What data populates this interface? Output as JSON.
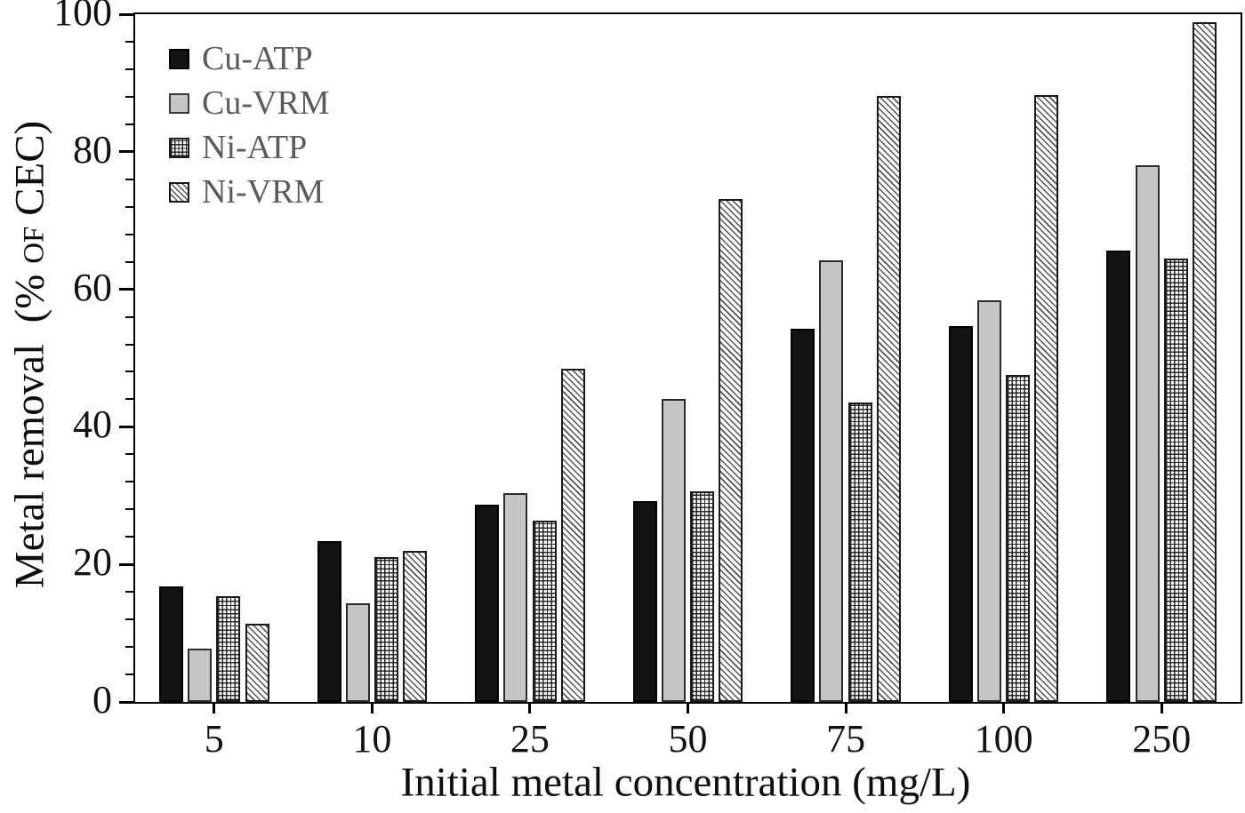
{
  "chart_data": {
    "type": "bar",
    "title": "",
    "xlabel": "Initial metal concentration (mg/L)",
    "ylabel": "Metal removal (% OF CEC)",
    "ylabel_parts": {
      "prefix": "Metal removal  (% ",
      "smallcaps": "OF",
      "suffix": " CEC)"
    },
    "categories": [
      "5",
      "10",
      "25",
      "50",
      "75",
      "100",
      "250"
    ],
    "series": [
      {
        "name": "Cu-ATP",
        "pattern": "solid-black",
        "color": "#141414",
        "values": [
          16.8,
          23.4,
          28.7,
          29.2,
          54.3,
          54.7,
          65.6
        ]
      },
      {
        "name": "Cu-VRM",
        "pattern": "solid-gray",
        "color": "#c5c5c5",
        "values": [
          7.8,
          14.4,
          30.4,
          44.0,
          64.2,
          58.4,
          78.1
        ]
      },
      {
        "name": "Ni-ATP",
        "pattern": "grid",
        "color": "#ffffff",
        "values": [
          15.4,
          21.0,
          26.4,
          30.6,
          43.5,
          47.5,
          64.5
        ]
      },
      {
        "name": "Ni-VRM",
        "pattern": "diag",
        "color": "#ffffff",
        "values": [
          11.4,
          21.9,
          48.5,
          73.1,
          88.1,
          88.3,
          98.8
        ]
      }
    ],
    "y_axis": {
      "min": 0,
      "max": 100,
      "major_step": 20,
      "minor_step": 4,
      "tick_labels": [
        "0",
        "20",
        "40",
        "60",
        "80",
        "100"
      ]
    },
    "legend_position": "top-left",
    "grid": false,
    "colors": {
      "axis": "#000000",
      "text": "#0d0d0d",
      "legend_text": "#5a5a5a",
      "bar_gray": "#c5c5c5",
      "bar_black": "#141414",
      "hatch": "#1a1a1a"
    }
  }
}
